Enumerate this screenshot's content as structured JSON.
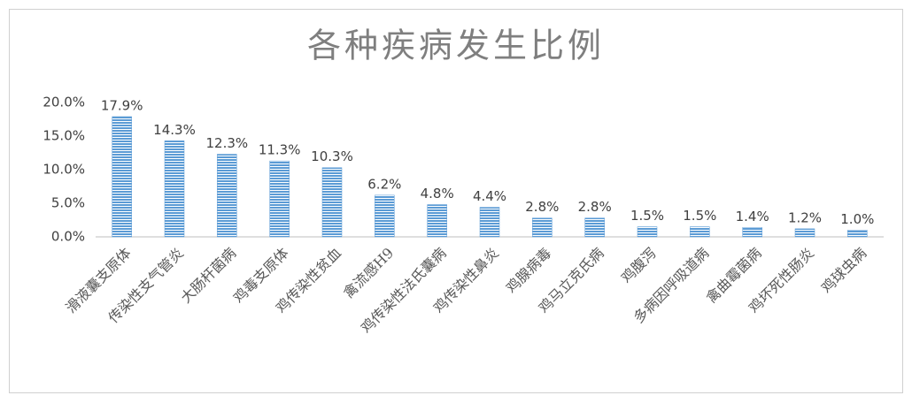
{
  "chart_data": {
    "type": "bar",
    "title": "各种疾病发生比例",
    "categories": [
      "滑液囊支原体",
      "传染性支气管炎",
      "大肠杆菌病",
      "鸡毒支原体",
      "鸡传染性贫血",
      "禽流感H9",
      "鸡传染性法氏囊病",
      "鸡传染性鼻炎",
      "鸡腺病毒",
      "鸡马立克氏病",
      "鸡腹泻",
      "多病因呼吸道病",
      "禽曲霉菌病",
      "鸡坏死性肠炎",
      "鸡球虫病"
    ],
    "values": [
      17.9,
      14.3,
      12.3,
      11.3,
      10.3,
      6.2,
      4.8,
      4.4,
      2.8,
      2.8,
      1.5,
      1.5,
      1.4,
      1.2,
      1.0
    ],
    "value_labels": [
      "17.9%",
      "14.3%",
      "12.3%",
      "11.3%",
      "10.3%",
      "6.2%",
      "4.8%",
      "4.4%",
      "2.8%",
      "2.8%",
      "1.5%",
      "1.5%",
      "1.4%",
      "1.2%",
      "1.0%"
    ],
    "color": "#5b9bd5",
    "ylim": [
      0,
      20
    ],
    "yticks": [
      {
        "value": 0,
        "label": "0.0%"
      },
      {
        "value": 5,
        "label": "5.0%"
      },
      {
        "value": 10,
        "label": "10.0%"
      },
      {
        "value": 15,
        "label": "15.0%"
      },
      {
        "value": 20,
        "label": "20.0%"
      }
    ],
    "grid": false
  }
}
